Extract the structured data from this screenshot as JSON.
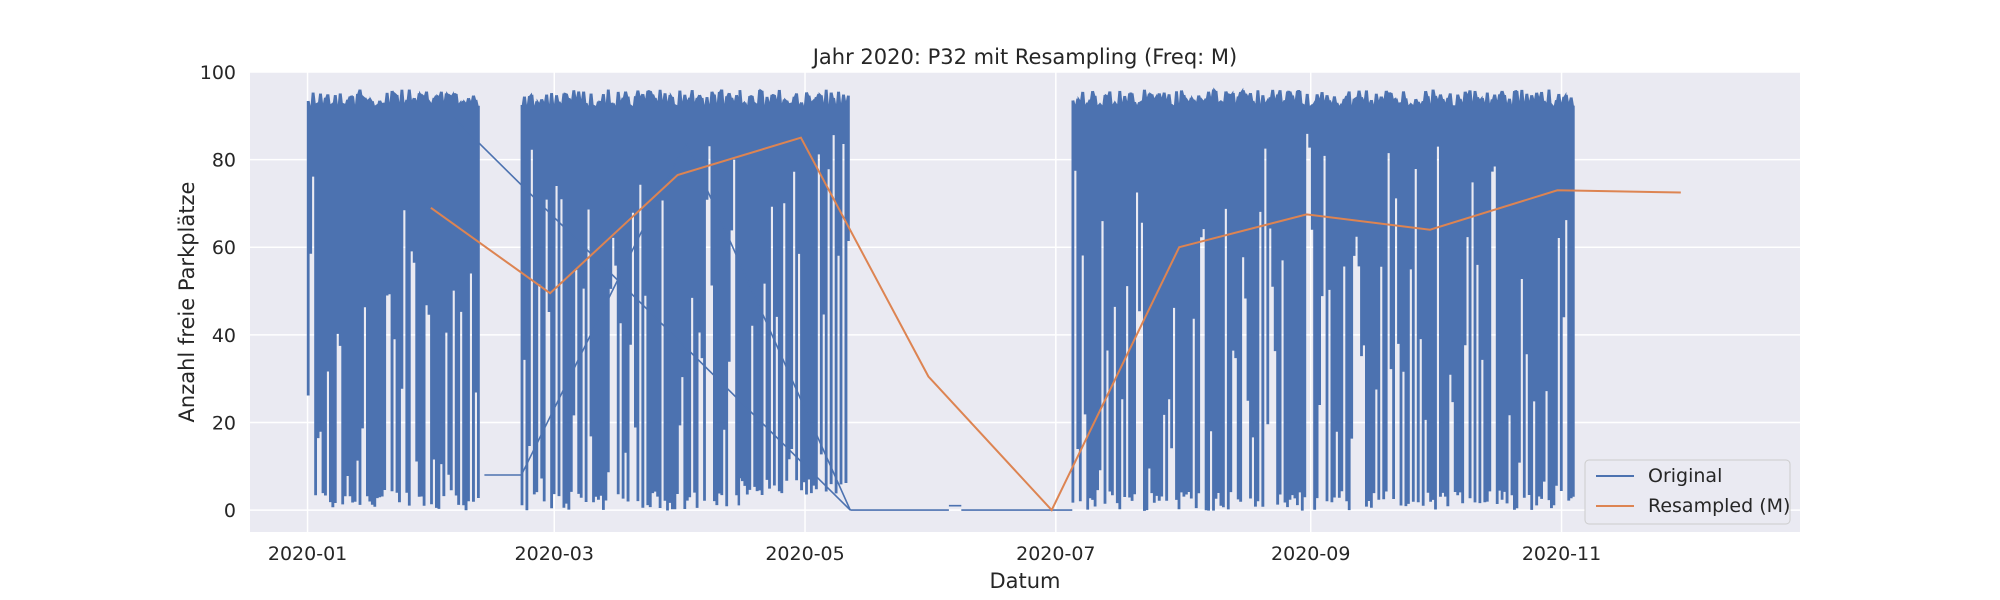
{
  "chart_data": {
    "type": "line",
    "title": "Jahr 2020: P32 mit Resampling (Freq: M)",
    "xlabel": "Datum",
    "ylabel": "Anzahl freie Parkplätze",
    "xlim": [
      "2019-12-18",
      "2020-12-29"
    ],
    "ylim": [
      -5,
      100
    ],
    "x_ticks": [
      "2020-01-01",
      "2020-03-01",
      "2020-05-01",
      "2020-07-01",
      "2020-09-01",
      "2020-11-01"
    ],
    "x_tick_labels": [
      "2020-01",
      "2020-03",
      "2020-05",
      "2020-07",
      "2020-09",
      "2020-11"
    ],
    "y_ticks": [
      0,
      20,
      40,
      60,
      80,
      100
    ],
    "y_tick_labels": [
      "0",
      "20",
      "40",
      "60",
      "80",
      "100"
    ],
    "grid": true,
    "legend_position": "lower-right",
    "series": [
      {
        "name": "Original",
        "color": "#4c72b0",
        "style": "oscillating",
        "segments": [
          {
            "start": "2020-01-01",
            "end": "2020-02-12",
            "high": 96,
            "low": 0
          },
          {
            "start": "2020-02-13",
            "end": "2020-02-22",
            "high": 8,
            "low": 8
          },
          {
            "start": "2020-02-22",
            "end": "2020-04-15",
            "high": 96,
            "low": 0
          },
          {
            "start": "2020-04-15",
            "end": "2020-05-12",
            "high": 96,
            "low": 3
          },
          {
            "start": "2020-05-12",
            "end": "2020-06-05",
            "high": 0,
            "low": 0
          },
          {
            "start": "2020-06-05",
            "end": "2020-06-08",
            "high": 1,
            "low": 1
          },
          {
            "start": "2020-06-08",
            "end": "2020-07-05",
            "high": 0,
            "low": 0
          },
          {
            "start": "2020-07-05",
            "end": "2020-11-04",
            "high": 96,
            "low": 0
          }
        ],
        "connectors": [
          {
            "x": [
              "2020-02-05",
              "2020-05-12"
            ],
            "y": [
              90,
              0
            ]
          },
          {
            "x": [
              "2020-02-22",
              "2020-04-02"
            ],
            "y": [
              8,
              84
            ]
          },
          {
            "x": [
              "2020-04-02",
              "2020-05-12"
            ],
            "y": [
              84,
              0
            ]
          }
        ]
      },
      {
        "name": "Resampled (M)",
        "color": "#dd8452",
        "x": [
          "2020-01-31",
          "2020-02-29",
          "2020-03-31",
          "2020-04-30",
          "2020-05-31",
          "2020-06-30",
          "2020-07-31",
          "2020-08-31",
          "2020-09-30",
          "2020-10-31",
          "2020-11-30"
        ],
        "values": [
          69,
          49.5,
          76.5,
          85,
          30.5,
          0,
          60,
          67.5,
          64,
          73,
          72.5
        ]
      }
    ]
  }
}
